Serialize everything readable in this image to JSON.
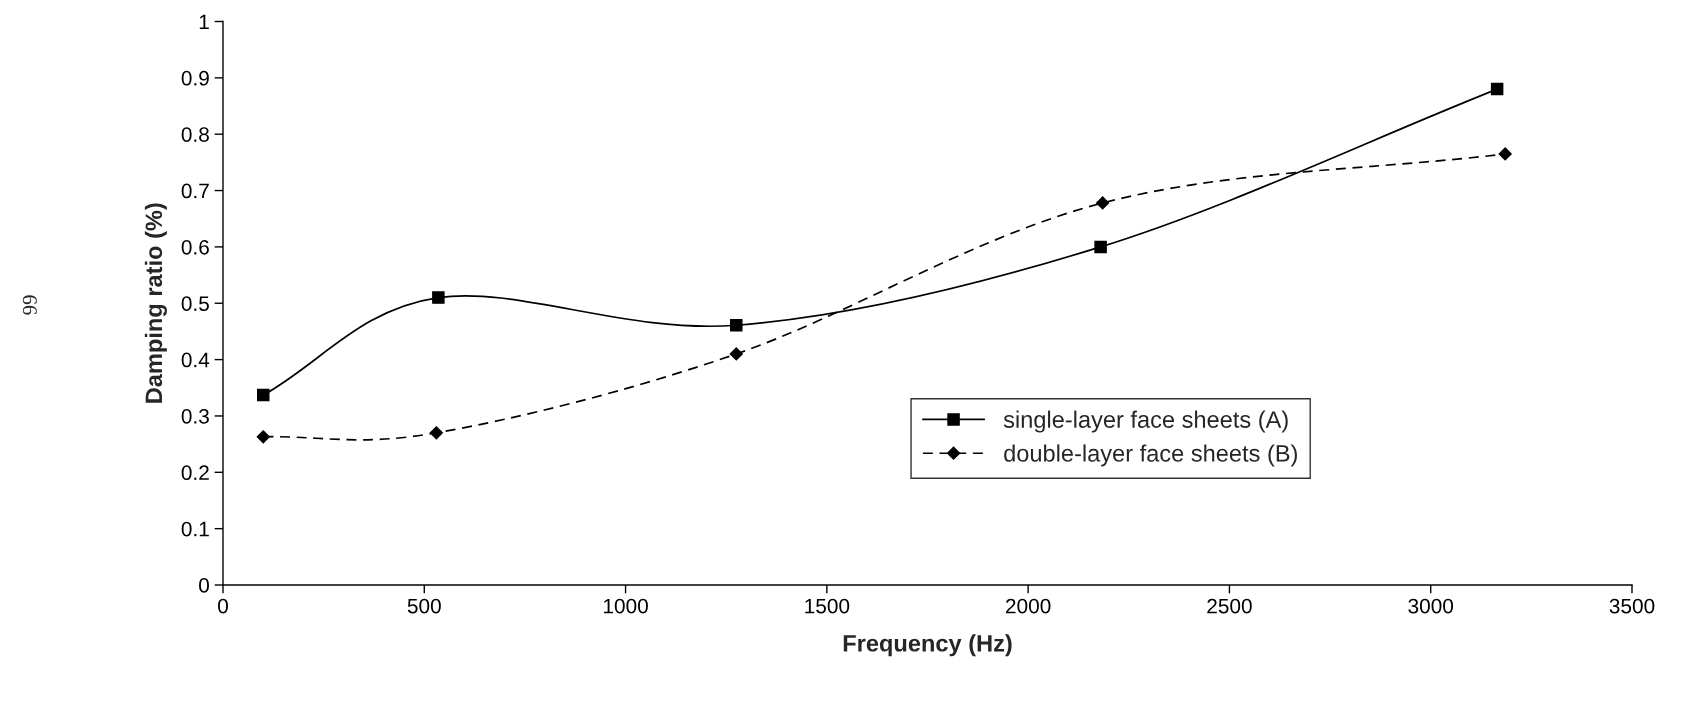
{
  "chart_data": {
    "type": "line",
    "xlabel": "Frequency (Hz)",
    "ylabel": "Damping ratio (%)",
    "series": [
      {
        "name": "single-layer face sheets (A)",
        "color": "#000000",
        "marker": "square",
        "line_style": "solid",
        "x": [
          100,
          535,
          1275,
          2180,
          3165
        ],
        "values": [
          0.337,
          0.51,
          0.461,
          0.6,
          0.88
        ]
      },
      {
        "name": "double-layer face sheets (B)",
        "color": "#000000",
        "marker": "diamond",
        "line_style": "dashed",
        "x": [
          100,
          530,
          1275,
          2185,
          3185
        ],
        "values": [
          0.263,
          0.27,
          0.41,
          0.678,
          0.765
        ]
      }
    ],
    "xlim": [
      0,
      3500
    ],
    "xticks": [
      0,
      500,
      1000,
      1500,
      2000,
      2500,
      3000,
      3500
    ],
    "ylim": [
      0,
      1
    ],
    "yticks": [
      0,
      0.1,
      0.2,
      0.3,
      0.4,
      0.5,
      0.6,
      0.7,
      0.8,
      0.9,
      1
    ],
    "grid": false,
    "legend": "center right",
    "annotations": [
      "66"
    ]
  }
}
